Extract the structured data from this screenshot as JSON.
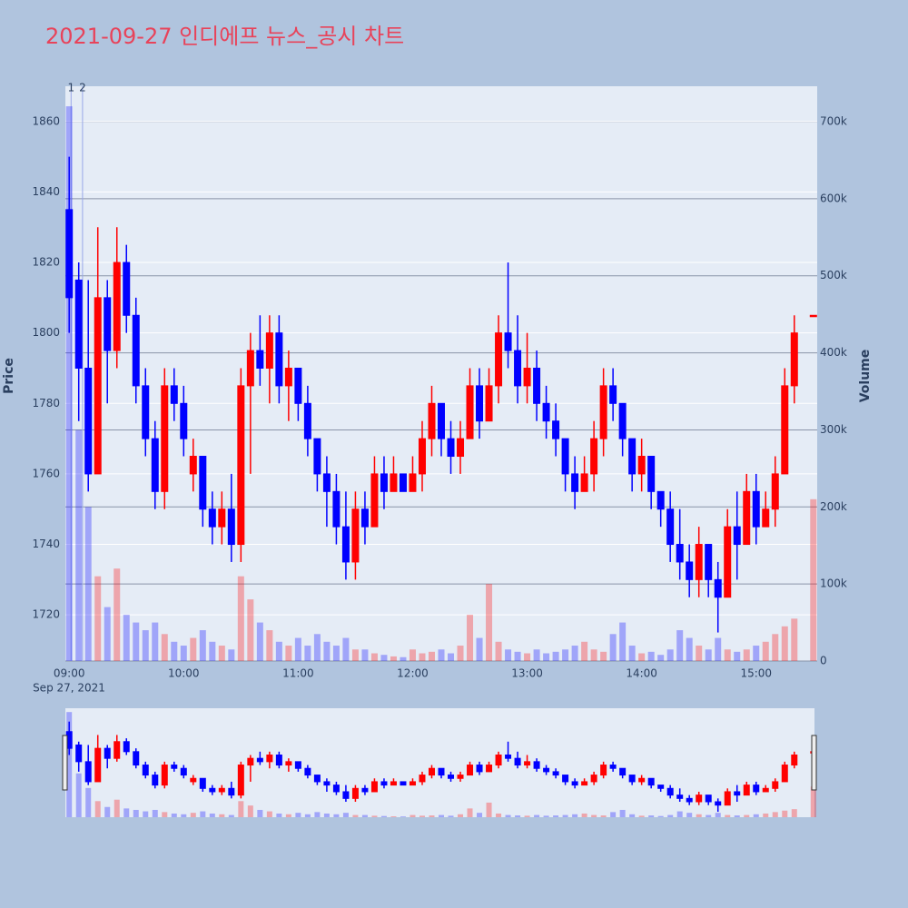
{
  "chart_data": {
    "type": "candlestick",
    "title": "2021-09-27 인디에프 뉴스_공시 차트",
    "y_title": "Price",
    "y2_title": "Volume",
    "x_date_label": "Sep 27, 2021",
    "increasing_color": "#ff0000",
    "decreasing_color": "#0000ff",
    "xlim": [
      "08:58",
      "15:32"
    ],
    "xticks": [
      "09:00",
      "10:00",
      "11:00",
      "12:00",
      "13:00",
      "14:00",
      "15:00"
    ],
    "ylim": [
      1706.9,
      1870
    ],
    "yticks": [
      1720,
      1740,
      1760,
      1780,
      1800,
      1820,
      1840,
      1860
    ],
    "y2lim": [
      0,
      746000
    ],
    "y2ticks": [
      0,
      {
        "value": 100000,
        "label": "100k"
      },
      {
        "value": 200000,
        "label": "200k"
      },
      {
        "value": 300000,
        "label": "300k"
      },
      {
        "value": 400000,
        "label": "400k"
      },
      {
        "value": 500000,
        "label": "500k"
      },
      {
        "value": 600000,
        "label": "600k"
      },
      {
        "value": 700000,
        "label": "700k"
      }
    ],
    "grid": true,
    "rangeslider": true,
    "annotations": [
      {
        "x": "09:01",
        "text": "1"
      },
      {
        "x": "09:07",
        "text": "2"
      }
    ],
    "x": [
      "09:00",
      "09:05",
      "09:10",
      "09:15",
      "09:20",
      "09:25",
      "09:30",
      "09:35",
      "09:40",
      "09:45",
      "09:50",
      "09:55",
      "10:00",
      "10:05",
      "10:10",
      "10:15",
      "10:20",
      "10:25",
      "10:30",
      "10:35",
      "10:40",
      "10:45",
      "10:50",
      "10:55",
      "11:00",
      "11:05",
      "11:10",
      "11:15",
      "11:20",
      "11:25",
      "11:30",
      "11:35",
      "11:40",
      "11:45",
      "11:50",
      "11:55",
      "12:00",
      "12:05",
      "12:10",
      "12:15",
      "12:20",
      "12:25",
      "12:30",
      "12:35",
      "12:40",
      "12:45",
      "12:50",
      "12:55",
      "13:00",
      "13:05",
      "13:10",
      "13:15",
      "13:20",
      "13:25",
      "13:30",
      "13:35",
      "13:40",
      "13:45",
      "13:50",
      "13:55",
      "14:00",
      "14:05",
      "14:10",
      "14:15",
      "14:20",
      "14:25",
      "14:30",
      "14:35",
      "14:40",
      "14:45",
      "14:50",
      "14:55",
      "15:00",
      "15:05",
      "15:10",
      "15:15",
      "15:20",
      "15:30"
    ],
    "open": [
      1835,
      1815,
      1790,
      1760,
      1810,
      1795,
      1820,
      1805,
      1785,
      1770,
      1755,
      1785,
      1780,
      1760,
      1765,
      1750,
      1745,
      1750,
      1740,
      1785,
      1795,
      1790,
      1800,
      1785,
      1790,
      1780,
      1770,
      1760,
      1755,
      1745,
      1735,
      1750,
      1745,
      1760,
      1755,
      1760,
      1755,
      1760,
      1770,
      1780,
      1770,
      1765,
      1770,
      1785,
      1775,
      1785,
      1800,
      1795,
      1785,
      1790,
      1780,
      1775,
      1770,
      1760,
      1755,
      1760,
      1770,
      1785,
      1780,
      1770,
      1760,
      1765,
      1755,
      1750,
      1740,
      1735,
      1730,
      1740,
      1730,
      1725,
      1745,
      1740,
      1755,
      1745,
      1750,
      1760,
      1785,
      1805
    ],
    "high": [
      1850,
      1820,
      1815,
      1830,
      1815,
      1830,
      1825,
      1810,
      1790,
      1775,
      1790,
      1790,
      1785,
      1770,
      1765,
      1755,
      1755,
      1760,
      1790,
      1800,
      1805,
      1805,
      1805,
      1795,
      1790,
      1785,
      1770,
      1765,
      1760,
      1755,
      1755,
      1755,
      1765,
      1765,
      1765,
      1760,
      1765,
      1775,
      1785,
      1780,
      1775,
      1775,
      1790,
      1790,
      1790,
      1805,
      1820,
      1805,
      1800,
      1795,
      1785,
      1780,
      1770,
      1765,
      1765,
      1775,
      1790,
      1790,
      1780,
      1770,
      1770,
      1765,
      1755,
      1755,
      1750,
      1740,
      1745,
      1740,
      1735,
      1750,
      1755,
      1760,
      1760,
      1755,
      1765,
      1790,
      1805,
      1805
    ],
    "low": [
      1800,
      1775,
      1755,
      1760,
      1780,
      1790,
      1800,
      1780,
      1765,
      1750,
      1750,
      1775,
      1765,
      1755,
      1745,
      1740,
      1740,
      1735,
      1735,
      1760,
      1785,
      1780,
      1780,
      1775,
      1775,
      1765,
      1755,
      1745,
      1740,
      1730,
      1730,
      1740,
      1745,
      1750,
      1755,
      1755,
      1755,
      1755,
      1765,
      1765,
      1760,
      1760,
      1770,
      1770,
      1775,
      1780,
      1790,
      1780,
      1780,
      1775,
      1770,
      1765,
      1755,
      1750,
      1755,
      1755,
      1765,
      1775,
      1765,
      1755,
      1755,
      1750,
      1745,
      1735,
      1730,
      1725,
      1725,
      1725,
      1715,
      1725,
      1730,
      1740,
      1740,
      1745,
      1745,
      1760,
      1780,
      1805
    ],
    "close": [
      1810,
      1790,
      1760,
      1810,
      1795,
      1820,
      1805,
      1785,
      1770,
      1755,
      1785,
      1780,
      1770,
      1765,
      1750,
      1745,
      1750,
      1740,
      1785,
      1795,
      1790,
      1800,
      1785,
      1790,
      1780,
      1770,
      1760,
      1755,
      1745,
      1735,
      1750,
      1745,
      1760,
      1755,
      1760,
      1755,
      1760,
      1770,
      1780,
      1770,
      1765,
      1770,
      1785,
      1775,
      1785,
      1800,
      1795,
      1785,
      1790,
      1780,
      1775,
      1770,
      1760,
      1755,
      1760,
      1770,
      1785,
      1780,
      1770,
      1760,
      1765,
      1755,
      1750,
      1740,
      1735,
      1730,
      1740,
      1730,
      1725,
      1745,
      1740,
      1755,
      1745,
      1750,
      1760,
      1785,
      1800,
      1805
    ],
    "volume": [
      720000,
      300000,
      200000,
      110000,
      70000,
      120000,
      60000,
      50000,
      40000,
      50000,
      35000,
      25000,
      20000,
      30000,
      40000,
      25000,
      20000,
      15000,
      110000,
      80000,
      50000,
      40000,
      25000,
      20000,
      30000,
      20000,
      35000,
      25000,
      20000,
      30000,
      15000,
      15000,
      10000,
      8000,
      6000,
      5000,
      15000,
      10000,
      12000,
      15000,
      10000,
      20000,
      60000,
      30000,
      100000,
      25000,
      15000,
      12000,
      10000,
      15000,
      10000,
      12000,
      15000,
      20000,
      25000,
      15000,
      12000,
      35000,
      50000,
      20000,
      10000,
      12000,
      8000,
      15000,
      40000,
      30000,
      20000,
      15000,
      30000,
      15000,
      12000,
      15000,
      20000,
      25000,
      35000,
      45000,
      55000,
      210000
    ]
  }
}
